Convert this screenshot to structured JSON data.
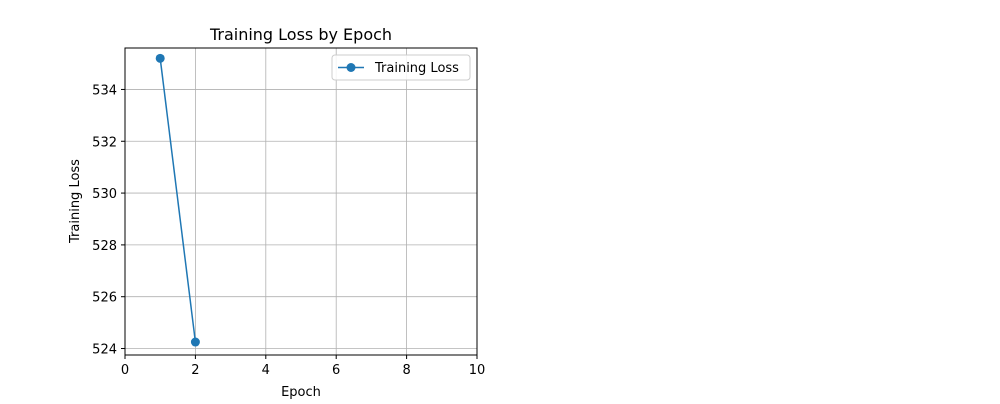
{
  "chart_data": {
    "type": "line",
    "title": "Training Loss by Epoch",
    "xlabel": "Epoch",
    "ylabel": "Training Loss",
    "xlim": [
      0,
      10
    ],
    "ylim": [
      523.75,
      535.6
    ],
    "xticks": [
      0,
      2,
      4,
      6,
      8,
      10
    ],
    "yticks": [
      524,
      526,
      528,
      530,
      532,
      534
    ],
    "grid": true,
    "legend_position": "top-right",
    "series": [
      {
        "name": "Training Loss",
        "color": "#1f77b4",
        "marker": "circle",
        "x": [
          1,
          2
        ],
        "y": [
          535.2,
          524.25
        ]
      }
    ]
  }
}
